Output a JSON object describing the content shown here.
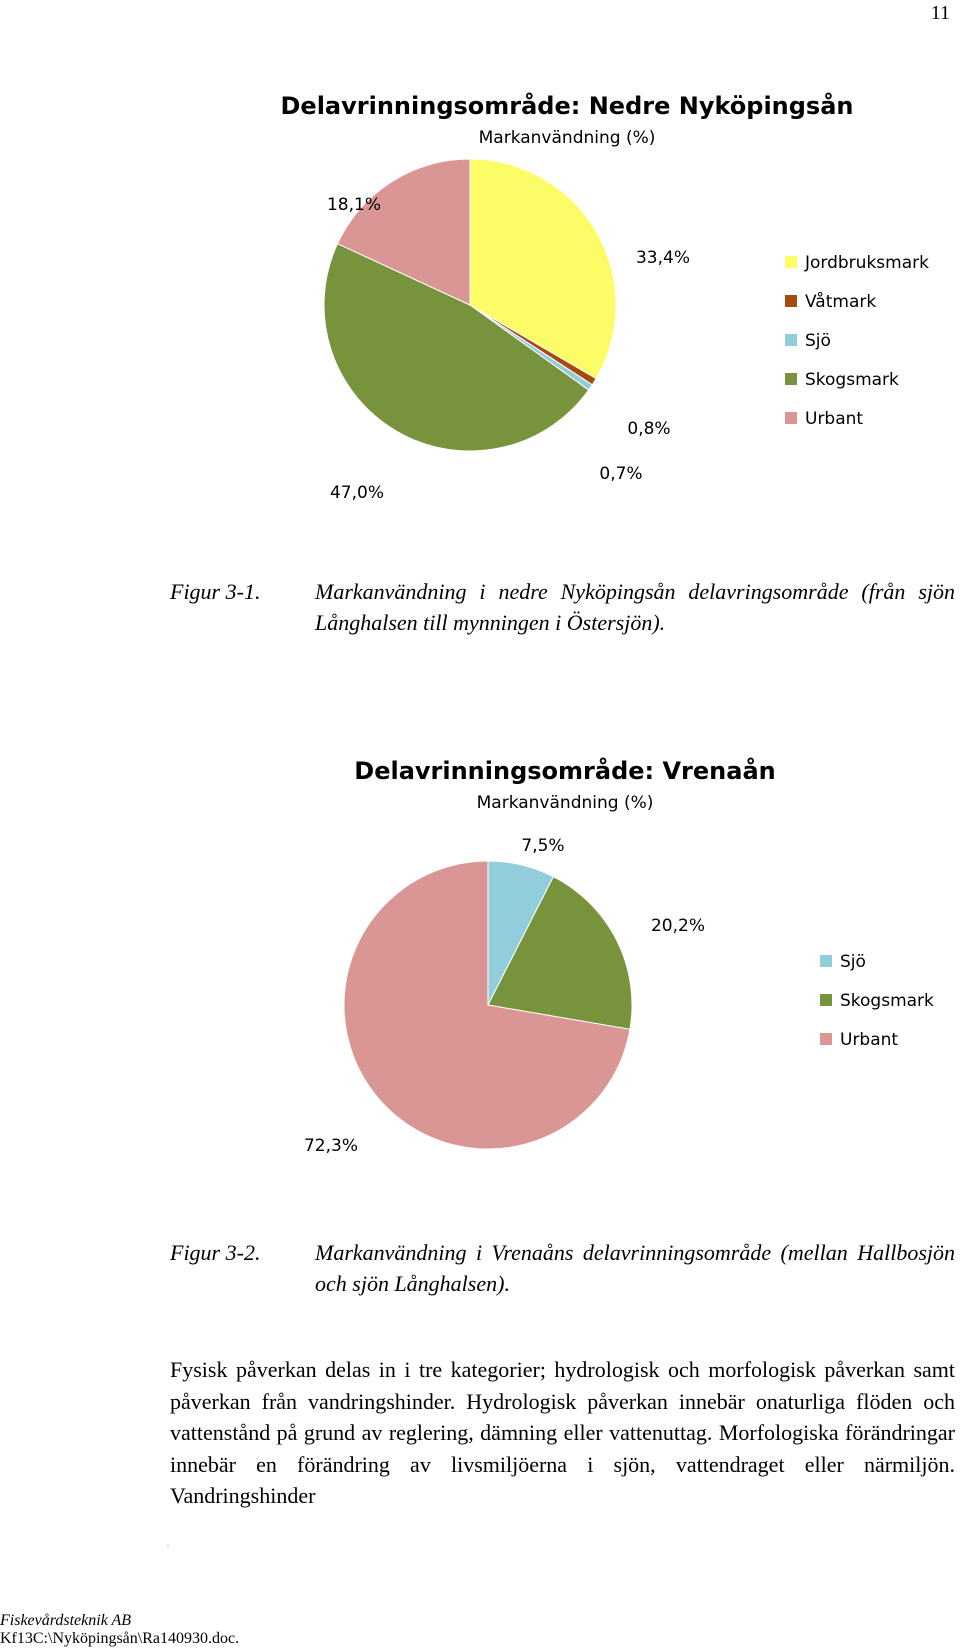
{
  "page": {
    "number": "11"
  },
  "figures": [
    {
      "caption_label": "Figur 3-1.",
      "caption_text": "Markanvändning i nedre Nyköpingsån delavringsområde (från sjön Långhalsen till mynningen i Östersjön)."
    },
    {
      "caption_label": "Figur 3-2.",
      "caption_text": "Markanvändning i Vrenaåns delavrinningsområde (mellan Hallbosjön och sjön Långhalsen)."
    }
  ],
  "chart_data": [
    {
      "type": "pie",
      "title": "Delavrinningsområde: Nedre Nyköpingsån",
      "subtitle": "Markanvändning (%)",
      "categories": [
        "Jordbruksmark",
        "Våtmark",
        "Sjö",
        "Skogsmark",
        "Urbant"
      ],
      "values": [
        33.4,
        0.8,
        0.7,
        47.0,
        18.1
      ],
      "labels": [
        "33,4%",
        "0,8%",
        "0,7%",
        "47,0%",
        "18,1%"
      ],
      "colors": [
        "#fcfc66",
        "#a64a10",
        "#92cddc",
        "#77933c",
        "#d99694"
      ],
      "legend": "right"
    },
    {
      "type": "pie",
      "title": "Delavrinningsområde: Vrenaån",
      "subtitle": "Markanvändning (%)",
      "categories": [
        "Sjö",
        "Skogsmark",
        "Urbant"
      ],
      "values": [
        7.5,
        20.2,
        72.3
      ],
      "labels": [
        "7,5%",
        "20,2%",
        "72,3%"
      ],
      "colors": [
        "#92cddc",
        "#77933c",
        "#d99694"
      ],
      "legend": "right"
    }
  ],
  "body": {
    "paragraph": "Fysisk påverkan delas in i tre kategorier; hydrologisk och morfologisk påverkan samt påverkan från vandringshinder. Hydrologisk påverkan innebär onaturliga flöden och vattenstånd på grund av reglering, dämning eller vattenuttag. Morfologiska förändringar innebär en förändring av livsmiljöerna i sjön, vattendraget eller närmiljön. Vandringshinder"
  },
  "footer": {
    "company": "Fiskevårdsteknik AB",
    "path": "Kf13C:\\Nyköpingsån\\Ra140930.doc."
  }
}
